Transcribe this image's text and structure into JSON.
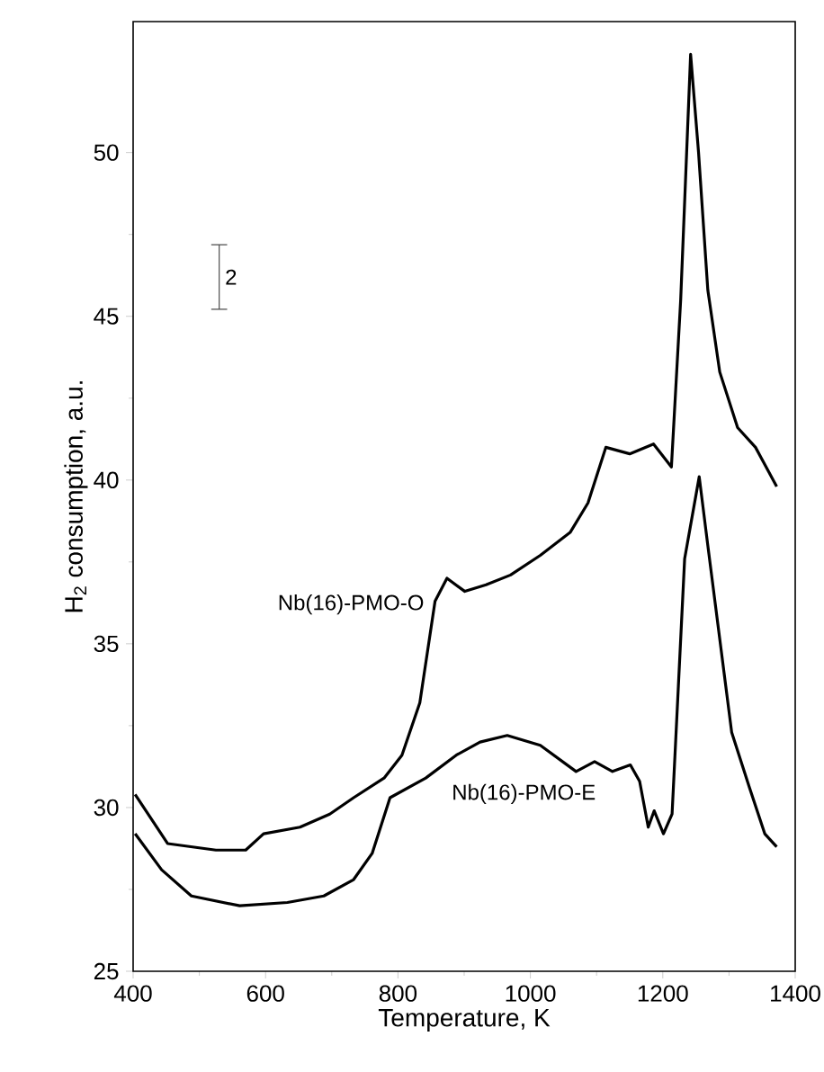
{
  "chart_data": {
    "type": "line",
    "xlabel": "Temperature, K",
    "ylabel": "H$_{2}$ consumption, a.u.",
    "xlim": [
      400,
      1400
    ],
    "ylim": [
      25,
      54
    ],
    "xticks": [
      400,
      600,
      800,
      1000,
      1200,
      1400
    ],
    "yticks": [
      25,
      30,
      35,
      40,
      45,
      50
    ],
    "legend": false,
    "grid": false,
    "marker": "none",
    "line_style": "solid",
    "annotations": [
      "2"
    ],
    "series": [
      {
        "name": "Nb(16)-PMO-O",
        "color": "#000000",
        "x": [
          403,
          452,
          525,
          570,
          597,
          652,
          697,
          733,
          779,
          806,
          833,
          856,
          874,
          901,
          933,
          970,
          1015,
          1060,
          1087,
          1114,
          1150,
          1186,
          1213,
          1227,
          1242,
          1254,
          1268,
          1286,
          1313,
          1340,
          1372
        ],
        "values": [
          30.4,
          28.9,
          28.7,
          28.7,
          29.2,
          29.4,
          29.8,
          30.3,
          30.9,
          31.6,
          33.2,
          36.3,
          37.0,
          36.6,
          36.8,
          37.1,
          37.7,
          38.4,
          39.3,
          41.0,
          40.8,
          41.1,
          40.4,
          45.5,
          53.0,
          50.0,
          45.8,
          43.3,
          41.6,
          41.0,
          39.8
        ]
      },
      {
        "name": "Nb(16)-PMO-E",
        "color": "#000000",
        "x": [
          403,
          443,
          488,
          561,
          633,
          688,
          733,
          761,
          788,
          842,
          888,
          924,
          965,
          1015,
          1069,
          1097,
          1124,
          1151,
          1165,
          1178,
          1187,
          1201,
          1214,
          1233,
          1255,
          1268,
          1304,
          1331,
          1354,
          1372
        ],
        "values": [
          29.2,
          28.1,
          27.3,
          27.0,
          27.1,
          27.3,
          27.8,
          28.6,
          30.3,
          30.9,
          31.6,
          32.0,
          32.2,
          31.9,
          31.1,
          31.4,
          31.1,
          31.3,
          30.8,
          29.4,
          29.9,
          29.2,
          29.8,
          37.6,
          40.1,
          38.0,
          32.3,
          30.6,
          29.2,
          28.8
        ]
      }
    ]
  }
}
